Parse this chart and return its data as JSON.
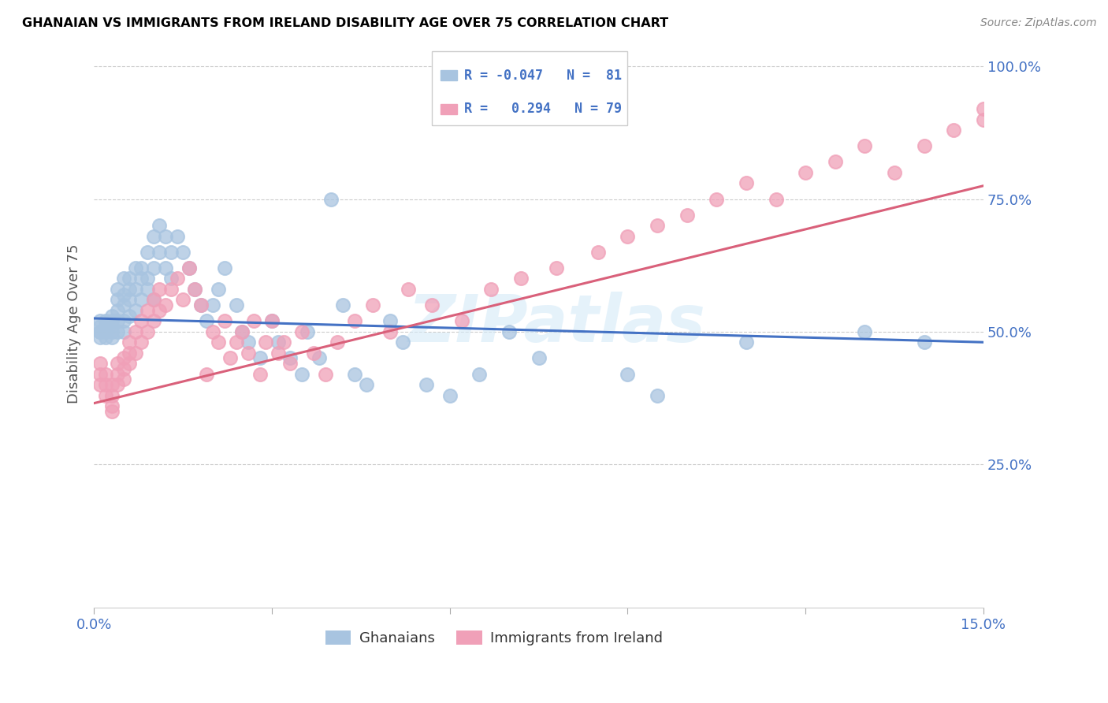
{
  "title": "GHANAIAN VS IMMIGRANTS FROM IRELAND DISABILITY AGE OVER 75 CORRELATION CHART",
  "source": "Source: ZipAtlas.com",
  "ylabel": "Disability Age Over 75",
  "x_min": 0.0,
  "x_max": 0.15,
  "y_min": 0.0,
  "y_max": 1.05,
  "x_tick_positions": [
    0.0,
    0.03,
    0.06,
    0.09,
    0.12,
    0.15
  ],
  "x_tick_labels": [
    "0.0%",
    "",
    "",
    "",
    "",
    "15.0%"
  ],
  "y_tick_positions": [
    0.25,
    0.5,
    0.75,
    1.0
  ],
  "y_tick_labels": [
    "25.0%",
    "50.0%",
    "75.0%",
    "100.0%"
  ],
  "color_ghanaian": "#a8c4e0",
  "color_ireland": "#f0a0b8",
  "color_blue": "#4472c4",
  "color_pink": "#d9607a",
  "color_line_ghanaian": "#4472c4",
  "color_line_ireland": "#d9607a",
  "watermark": "ZIPatlas",
  "legend_line1": "R = -0.047   N =  81",
  "legend_line2": "R =   0.294   N = 79",
  "ghanaian_x": [
    0.001,
    0.001,
    0.001,
    0.001,
    0.001,
    0.002,
    0.002,
    0.002,
    0.002,
    0.003,
    0.003,
    0.003,
    0.003,
    0.003,
    0.004,
    0.004,
    0.004,
    0.004,
    0.004,
    0.005,
    0.005,
    0.005,
    0.005,
    0.005,
    0.006,
    0.006,
    0.006,
    0.006,
    0.007,
    0.007,
    0.007,
    0.008,
    0.008,
    0.008,
    0.009,
    0.009,
    0.009,
    0.01,
    0.01,
    0.01,
    0.011,
    0.011,
    0.012,
    0.012,
    0.013,
    0.013,
    0.014,
    0.015,
    0.016,
    0.017,
    0.018,
    0.019,
    0.02,
    0.021,
    0.022,
    0.024,
    0.025,
    0.026,
    0.028,
    0.03,
    0.031,
    0.033,
    0.035,
    0.036,
    0.038,
    0.04,
    0.042,
    0.044,
    0.046,
    0.05,
    0.052,
    0.056,
    0.06,
    0.065,
    0.07,
    0.075,
    0.09,
    0.095,
    0.11,
    0.13,
    0.14
  ],
  "ghanaian_y": [
    0.49,
    0.5,
    0.51,
    0.52,
    0.5,
    0.51,
    0.52,
    0.5,
    0.49,
    0.51,
    0.52,
    0.53,
    0.5,
    0.49,
    0.54,
    0.56,
    0.58,
    0.52,
    0.5,
    0.6,
    0.57,
    0.55,
    0.52,
    0.5,
    0.58,
    0.6,
    0.56,
    0.53,
    0.62,
    0.58,
    0.54,
    0.6,
    0.62,
    0.56,
    0.65,
    0.6,
    0.58,
    0.68,
    0.62,
    0.56,
    0.7,
    0.65,
    0.68,
    0.62,
    0.65,
    0.6,
    0.68,
    0.65,
    0.62,
    0.58,
    0.55,
    0.52,
    0.55,
    0.58,
    0.62,
    0.55,
    0.5,
    0.48,
    0.45,
    0.52,
    0.48,
    0.45,
    0.42,
    0.5,
    0.45,
    0.75,
    0.55,
    0.42,
    0.4,
    0.52,
    0.48,
    0.4,
    0.38,
    0.42,
    0.5,
    0.45,
    0.42,
    0.38,
    0.48,
    0.5,
    0.48
  ],
  "ireland_x": [
    0.001,
    0.001,
    0.001,
    0.002,
    0.002,
    0.002,
    0.003,
    0.003,
    0.003,
    0.003,
    0.004,
    0.004,
    0.004,
    0.005,
    0.005,
    0.005,
    0.006,
    0.006,
    0.006,
    0.007,
    0.007,
    0.008,
    0.008,
    0.009,
    0.009,
    0.01,
    0.01,
    0.011,
    0.011,
    0.012,
    0.013,
    0.014,
    0.015,
    0.016,
    0.017,
    0.018,
    0.019,
    0.02,
    0.021,
    0.022,
    0.023,
    0.024,
    0.025,
    0.026,
    0.027,
    0.028,
    0.029,
    0.03,
    0.031,
    0.032,
    0.033,
    0.035,
    0.037,
    0.039,
    0.041,
    0.044,
    0.047,
    0.05,
    0.053,
    0.057,
    0.062,
    0.067,
    0.072,
    0.078,
    0.085,
    0.09,
    0.095,
    0.1,
    0.105,
    0.11,
    0.115,
    0.12,
    0.125,
    0.13,
    0.135,
    0.14,
    0.145,
    0.15,
    0.15
  ],
  "ireland_y": [
    0.42,
    0.4,
    0.44,
    0.38,
    0.42,
    0.4,
    0.35,
    0.38,
    0.4,
    0.36,
    0.42,
    0.44,
    0.4,
    0.45,
    0.43,
    0.41,
    0.46,
    0.48,
    0.44,
    0.5,
    0.46,
    0.52,
    0.48,
    0.54,
    0.5,
    0.56,
    0.52,
    0.58,
    0.54,
    0.55,
    0.58,
    0.6,
    0.56,
    0.62,
    0.58,
    0.55,
    0.42,
    0.5,
    0.48,
    0.52,
    0.45,
    0.48,
    0.5,
    0.46,
    0.52,
    0.42,
    0.48,
    0.52,
    0.46,
    0.48,
    0.44,
    0.5,
    0.46,
    0.42,
    0.48,
    0.52,
    0.55,
    0.5,
    0.58,
    0.55,
    0.52,
    0.58,
    0.6,
    0.62,
    0.65,
    0.68,
    0.7,
    0.72,
    0.75,
    0.78,
    0.75,
    0.8,
    0.82,
    0.85,
    0.8,
    0.85,
    0.88,
    0.9,
    0.92
  ]
}
